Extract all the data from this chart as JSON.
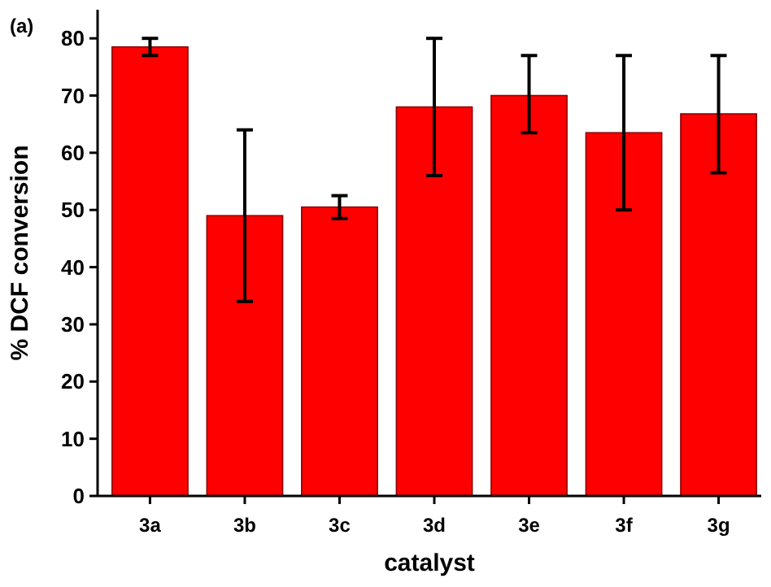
{
  "chart_data": {
    "type": "bar",
    "xlabel": "catalyst",
    "ylabel": "% DCF conversion",
    "annotations": [
      "(a)"
    ],
    "categories": [
      "3a",
      "3b",
      "3c",
      "3d",
      "3e",
      "3f",
      "3g"
    ],
    "values": [
      78.5,
      49,
      50.5,
      68,
      70,
      63.5,
      66.8
    ],
    "errors": [
      [
        77,
        80
      ],
      [
        34,
        64
      ],
      [
        48.5,
        52.5
      ],
      [
        56,
        80
      ],
      [
        63.5,
        77
      ],
      [
        50,
        77
      ],
      [
        56.5,
        77
      ]
    ],
    "color": "#ff0000",
    "ylim": [
      0,
      85
    ],
    "yticks": [
      0,
      10,
      20,
      30,
      40,
      50,
      60,
      70,
      80
    ],
    "grid": false
  }
}
